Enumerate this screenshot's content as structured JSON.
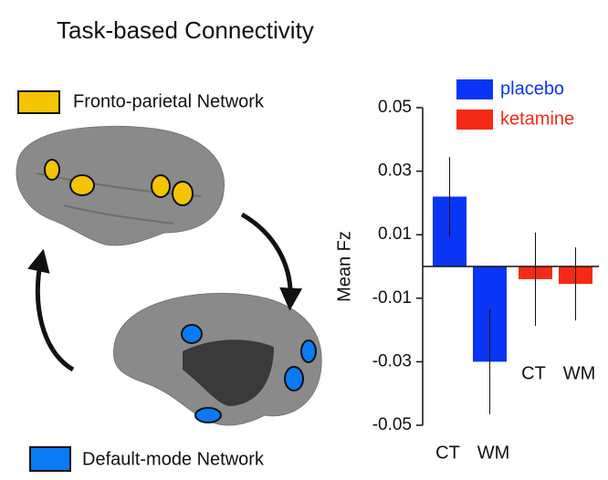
{
  "chart_data": {
    "type": "bar",
    "title": "Task-based Connectivity",
    "ylabel": "Mean Fz",
    "categories": [
      "CT",
      "WM"
    ],
    "series": [
      {
        "name": "placebo",
        "color": "#0a35f5",
        "values": [
          0.022,
          -0.03
        ],
        "errors": [
          0.0125,
          0.0165
        ]
      },
      {
        "name": "ketamine",
        "color": "#f52a14",
        "values": [
          -0.004,
          -0.0055
        ],
        "errors": [
          0.0147,
          0.0115
        ]
      }
    ],
    "ylim": [
      -0.05,
      0.05
    ],
    "yticks": [
      -0.05,
      -0.03,
      -0.01,
      0.01,
      0.03,
      0.05
    ],
    "annotations": [
      "Fronto-parietal Network",
      "Default-mode Network"
    ]
  }
}
